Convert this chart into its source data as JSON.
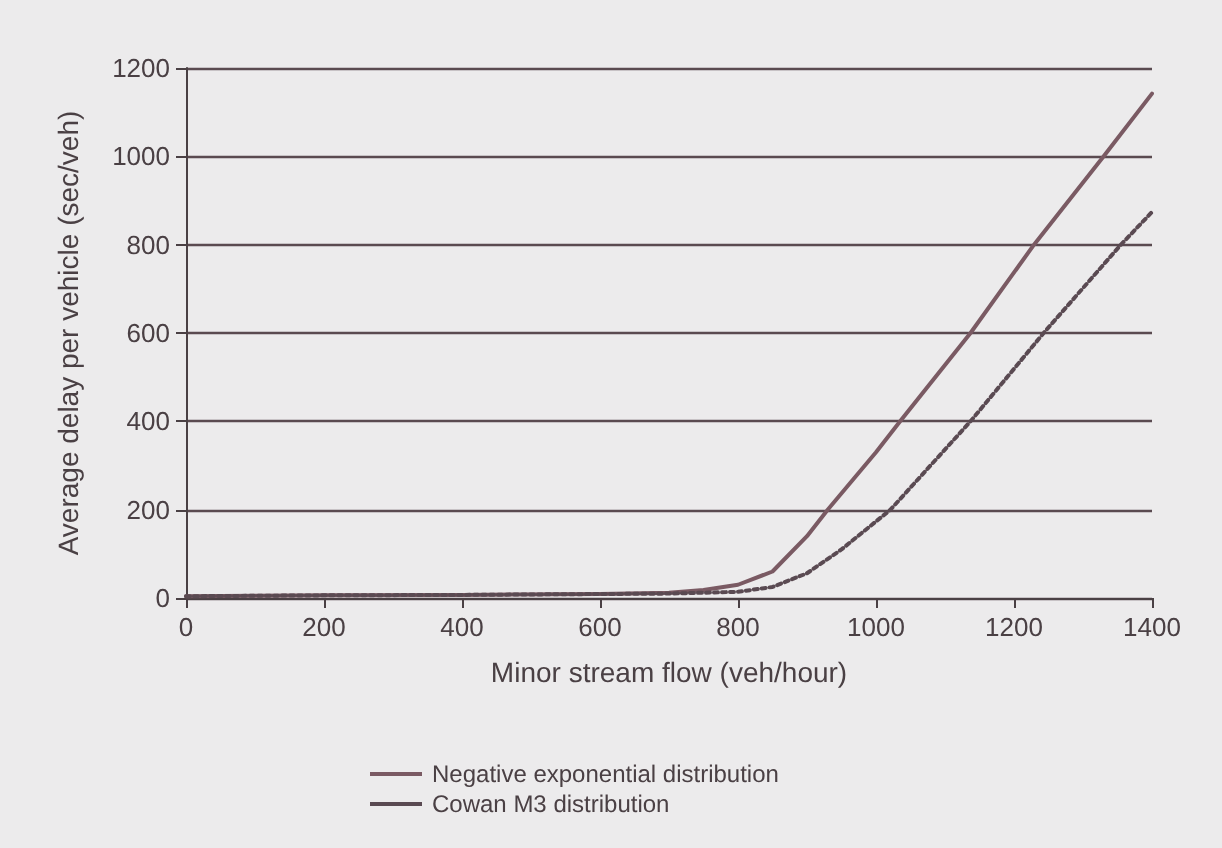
{
  "chart_data": {
    "type": "line",
    "xlabel": "Minor stream flow (veh/hour)",
    "ylabel": "Average delay per vehicle (sec/veh)",
    "xlim": [
      0,
      1400
    ],
    "xticks": [
      0,
      200,
      400,
      600,
      800,
      1000,
      1200,
      1400
    ],
    "ylim": [
      0,
      1200
    ],
    "yticks": [
      0,
      200,
      400,
      600,
      800,
      1000,
      1200
    ],
    "grid": "y",
    "legend": "bottom",
    "marker": "none",
    "series": [
      {
        "name": "Negative exponential distribution",
        "color": "#7a5a63",
        "line_style": "solid",
        "x": [
          0,
          200,
          400,
          600,
          700,
          750,
          800,
          850,
          900,
          930,
          1000,
          1035,
          1137,
          1229,
          1330,
          1400
        ],
        "values": [
          4,
          6,
          7,
          9,
          12,
          18,
          30,
          60,
          140,
          200,
          330,
          400,
          600,
          800,
          1000,
          1142
        ]
      },
      {
        "name": "Cowan M3 distribution",
        "color": "#5a4a52",
        "line_style": "dotted",
        "x": [
          0,
          200,
          400,
          600,
          700,
          800,
          850,
          900,
          950,
          1021,
          1137,
          1243,
          1355,
          1400
        ],
        "values": [
          4,
          6,
          7,
          9,
          10,
          14,
          25,
          56,
          110,
          200,
          400,
          600,
          800,
          874
        ]
      }
    ]
  }
}
